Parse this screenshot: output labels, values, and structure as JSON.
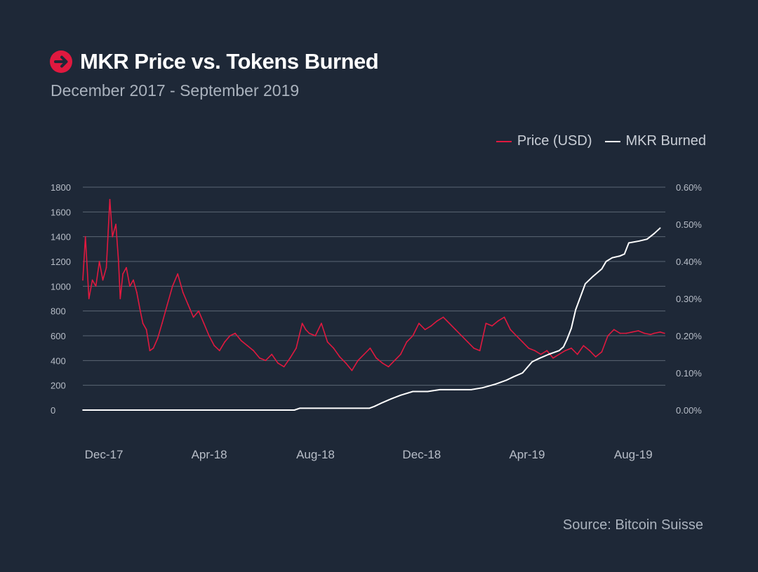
{
  "header": {
    "title": "MKR Price vs. Tokens Burned",
    "subtitle": "December 2017 - September 2019"
  },
  "legend": {
    "price_label": "Price (USD)",
    "burned_label": "MKR Burned"
  },
  "footer": {
    "source": "Source: Bitcoin Suisse"
  },
  "colors": {
    "background": "#1e2837",
    "price": "#e0193f",
    "burned": "#ffffff",
    "grid": "#5b6675"
  },
  "icons": {
    "title_icon": "arrow-right-circle-icon"
  },
  "chart_data": {
    "type": "line",
    "x_tick_labels": [
      "Dec-17",
      "Apr-18",
      "Aug-18",
      "Dec-18",
      "Apr-19",
      "Aug-19"
    ],
    "y_left": {
      "ticks": [
        0,
        200,
        400,
        600,
        800,
        1000,
        1200,
        1400,
        1600,
        1800
      ],
      "ylim": [
        0,
        1800
      ]
    },
    "y_right": {
      "ticks": [
        "0.00%",
        "0.10%",
        "0.20%",
        "0.30%",
        "0.40%",
        "0.50%",
        "0.60%"
      ],
      "ylim": [
        0,
        0.6
      ]
    },
    "grid": true,
    "legend_position": "top-right",
    "series": [
      {
        "name": "Price (USD)",
        "axis": "left",
        "x": [
          "2017-12-01",
          "2017-12-04",
          "2017-12-08",
          "2017-12-12",
          "2017-12-16",
          "2017-12-20",
          "2017-12-24",
          "2017-12-28",
          "2018-01-01",
          "2018-01-04",
          "2018-01-08",
          "2018-01-11",
          "2018-01-13",
          "2018-01-16",
          "2018-01-20",
          "2018-01-24",
          "2018-01-28",
          "2018-02-01",
          "2018-02-05",
          "2018-02-08",
          "2018-02-12",
          "2018-02-16",
          "2018-02-20",
          "2018-02-25",
          "2018-03-02",
          "2018-03-08",
          "2018-03-14",
          "2018-03-20",
          "2018-03-26",
          "2018-04-01",
          "2018-04-07",
          "2018-04-13",
          "2018-04-19",
          "2018-04-25",
          "2018-05-01",
          "2018-05-07",
          "2018-05-13",
          "2018-05-19",
          "2018-05-25",
          "2018-06-01",
          "2018-06-08",
          "2018-06-15",
          "2018-06-22",
          "2018-06-29",
          "2018-07-06",
          "2018-07-13",
          "2018-07-20",
          "2018-07-27",
          "2018-08-03",
          "2018-08-10",
          "2018-08-14",
          "2018-08-18",
          "2018-08-25",
          "2018-09-01",
          "2018-09-08",
          "2018-09-15",
          "2018-09-22",
          "2018-09-29",
          "2018-10-06",
          "2018-10-13",
          "2018-10-20",
          "2018-10-27",
          "2018-11-03",
          "2018-11-10",
          "2018-11-17",
          "2018-11-24",
          "2018-12-01",
          "2018-12-08",
          "2018-12-15",
          "2018-12-22",
          "2018-12-29",
          "2019-01-05",
          "2019-01-12",
          "2019-01-19",
          "2019-01-26",
          "2019-02-02",
          "2019-02-09",
          "2019-02-16",
          "2019-02-23",
          "2019-03-02",
          "2019-03-09",
          "2019-03-16",
          "2019-03-23",
          "2019-03-30",
          "2019-04-06",
          "2019-04-13",
          "2019-04-20",
          "2019-04-27",
          "2019-05-04",
          "2019-05-11",
          "2019-05-18",
          "2019-05-25",
          "2019-06-01",
          "2019-06-08",
          "2019-06-15",
          "2019-06-22",
          "2019-06-29",
          "2019-07-06",
          "2019-07-13",
          "2019-07-20",
          "2019-07-27",
          "2019-08-03",
          "2019-08-10",
          "2019-08-17",
          "2019-08-24",
          "2019-08-31",
          "2019-09-07",
          "2019-09-14",
          "2019-09-18",
          "2019-09-25",
          "2019-09-30"
        ],
        "values": [
          1050,
          1400,
          900,
          1050,
          1000,
          1200,
          1050,
          1150,
          1700,
          1400,
          1500,
          1200,
          900,
          1100,
          1150,
          1000,
          1050,
          950,
          800,
          700,
          650,
          480,
          500,
          580,
          700,
          850,
          1000,
          1100,
          950,
          850,
          750,
          800,
          700,
          600,
          520,
          480,
          550,
          600,
          620,
          560,
          520,
          480,
          420,
          400,
          450,
          380,
          350,
          420,
          500,
          700,
          650,
          620,
          600,
          700,
          550,
          500,
          430,
          380,
          320,
          400,
          450,
          500,
          420,
          380,
          350,
          400,
          450,
          550,
          600,
          700,
          650,
          680,
          720,
          750,
          700,
          650,
          600,
          550,
          500,
          480,
          700,
          680,
          720,
          750,
          650,
          600,
          550,
          500,
          480,
          450,
          480,
          420,
          450,
          480,
          500,
          450,
          520,
          480,
          430,
          470,
          600,
          650,
          620,
          620,
          630,
          640,
          620,
          610,
          620,
          630,
          620
        ],
        "color": "#e0193f"
      },
      {
        "name": "MKR Burned",
        "axis": "right",
        "x": [
          "2017-12-01",
          "2018-08-01",
          "2018-08-07",
          "2018-10-26",
          "2018-11-01",
          "2018-11-10",
          "2018-11-20",
          "2018-12-01",
          "2018-12-15",
          "2019-01-01",
          "2019-01-15",
          "2019-02-01",
          "2019-02-20",
          "2019-03-05",
          "2019-03-20",
          "2019-04-01",
          "2019-04-10",
          "2019-04-20",
          "2019-05-01",
          "2019-05-10",
          "2019-05-20",
          "2019-06-01",
          "2019-06-06",
          "2019-06-10",
          "2019-06-15",
          "2019-06-20",
          "2019-07-01",
          "2019-07-10",
          "2019-07-20",
          "2019-07-25",
          "2019-08-01",
          "2019-08-10",
          "2019-08-15",
          "2019-08-20",
          "2019-09-01",
          "2019-09-10",
          "2019-09-18",
          "2019-09-25"
        ],
        "values": [
          0.0,
          0.0,
          0.005,
          0.005,
          0.01,
          0.02,
          0.03,
          0.04,
          0.05,
          0.05,
          0.055,
          0.055,
          0.055,
          0.06,
          0.07,
          0.08,
          0.09,
          0.1,
          0.13,
          0.14,
          0.15,
          0.16,
          0.17,
          0.19,
          0.22,
          0.27,
          0.34,
          0.36,
          0.38,
          0.4,
          0.41,
          0.415,
          0.42,
          0.45,
          0.455,
          0.46,
          0.475,
          0.49
        ],
        "color": "#ffffff"
      }
    ]
  }
}
